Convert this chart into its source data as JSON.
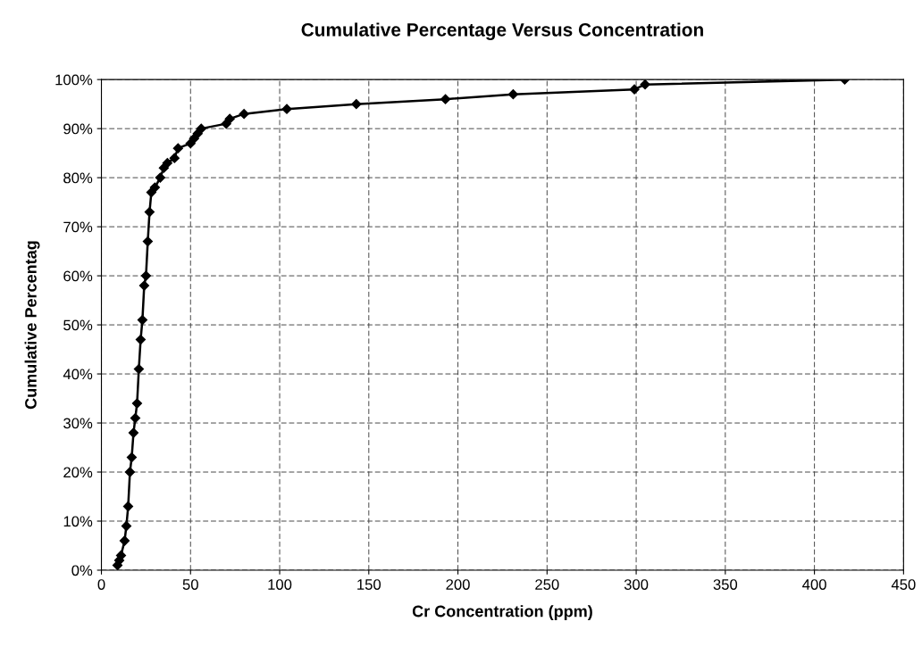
{
  "chart_data": {
    "type": "line",
    "title": "Cumulative Percentage Versus Concentration",
    "xlabel": "Cr Concentration (ppm)",
    "ylabel": "Cumulative Percentag",
    "series": [
      {
        "color": "#000000",
        "x": [
          9,
          10,
          11,
          13,
          14,
          15,
          16,
          17,
          18,
          19,
          20,
          21,
          22,
          23,
          24,
          25,
          26,
          27,
          28,
          30,
          33,
          35,
          37,
          41,
          43,
          50,
          52,
          54,
          56,
          70,
          72,
          80,
          104,
          143,
          193,
          231,
          299,
          305,
          417
        ],
        "values": [
          1,
          2,
          3,
          6,
          9,
          13,
          20,
          23,
          28,
          31,
          34,
          41,
          47,
          51,
          58,
          60,
          67,
          73,
          77,
          78,
          80,
          82,
          83,
          84,
          86,
          87,
          88,
          89,
          90,
          91,
          92,
          93,
          94,
          95,
          96,
          97,
          98,
          99,
          100
        ]
      }
    ],
    "xlim": [
      0,
      450
    ],
    "xticks": [
      0,
      50,
      100,
      150,
      200,
      250,
      300,
      350,
      400,
      450
    ],
    "ylim": [
      0,
      100
    ],
    "yticks": [
      {
        "value": 0,
        "label": "0%"
      },
      {
        "value": 10,
        "label": "10%"
      },
      {
        "value": 20,
        "label": "20%"
      },
      {
        "value": 30,
        "label": "30%"
      },
      {
        "value": 40,
        "label": "40%"
      },
      {
        "value": 50,
        "label": "50%"
      },
      {
        "value": 60,
        "label": "60%"
      },
      {
        "value": 70,
        "label": "70%"
      },
      {
        "value": 80,
        "label": "80%"
      },
      {
        "value": 90,
        "label": "90%"
      },
      {
        "value": 100,
        "label": "100%"
      }
    ],
    "grid": true,
    "marker": "diamond",
    "line_style": "solid"
  }
}
